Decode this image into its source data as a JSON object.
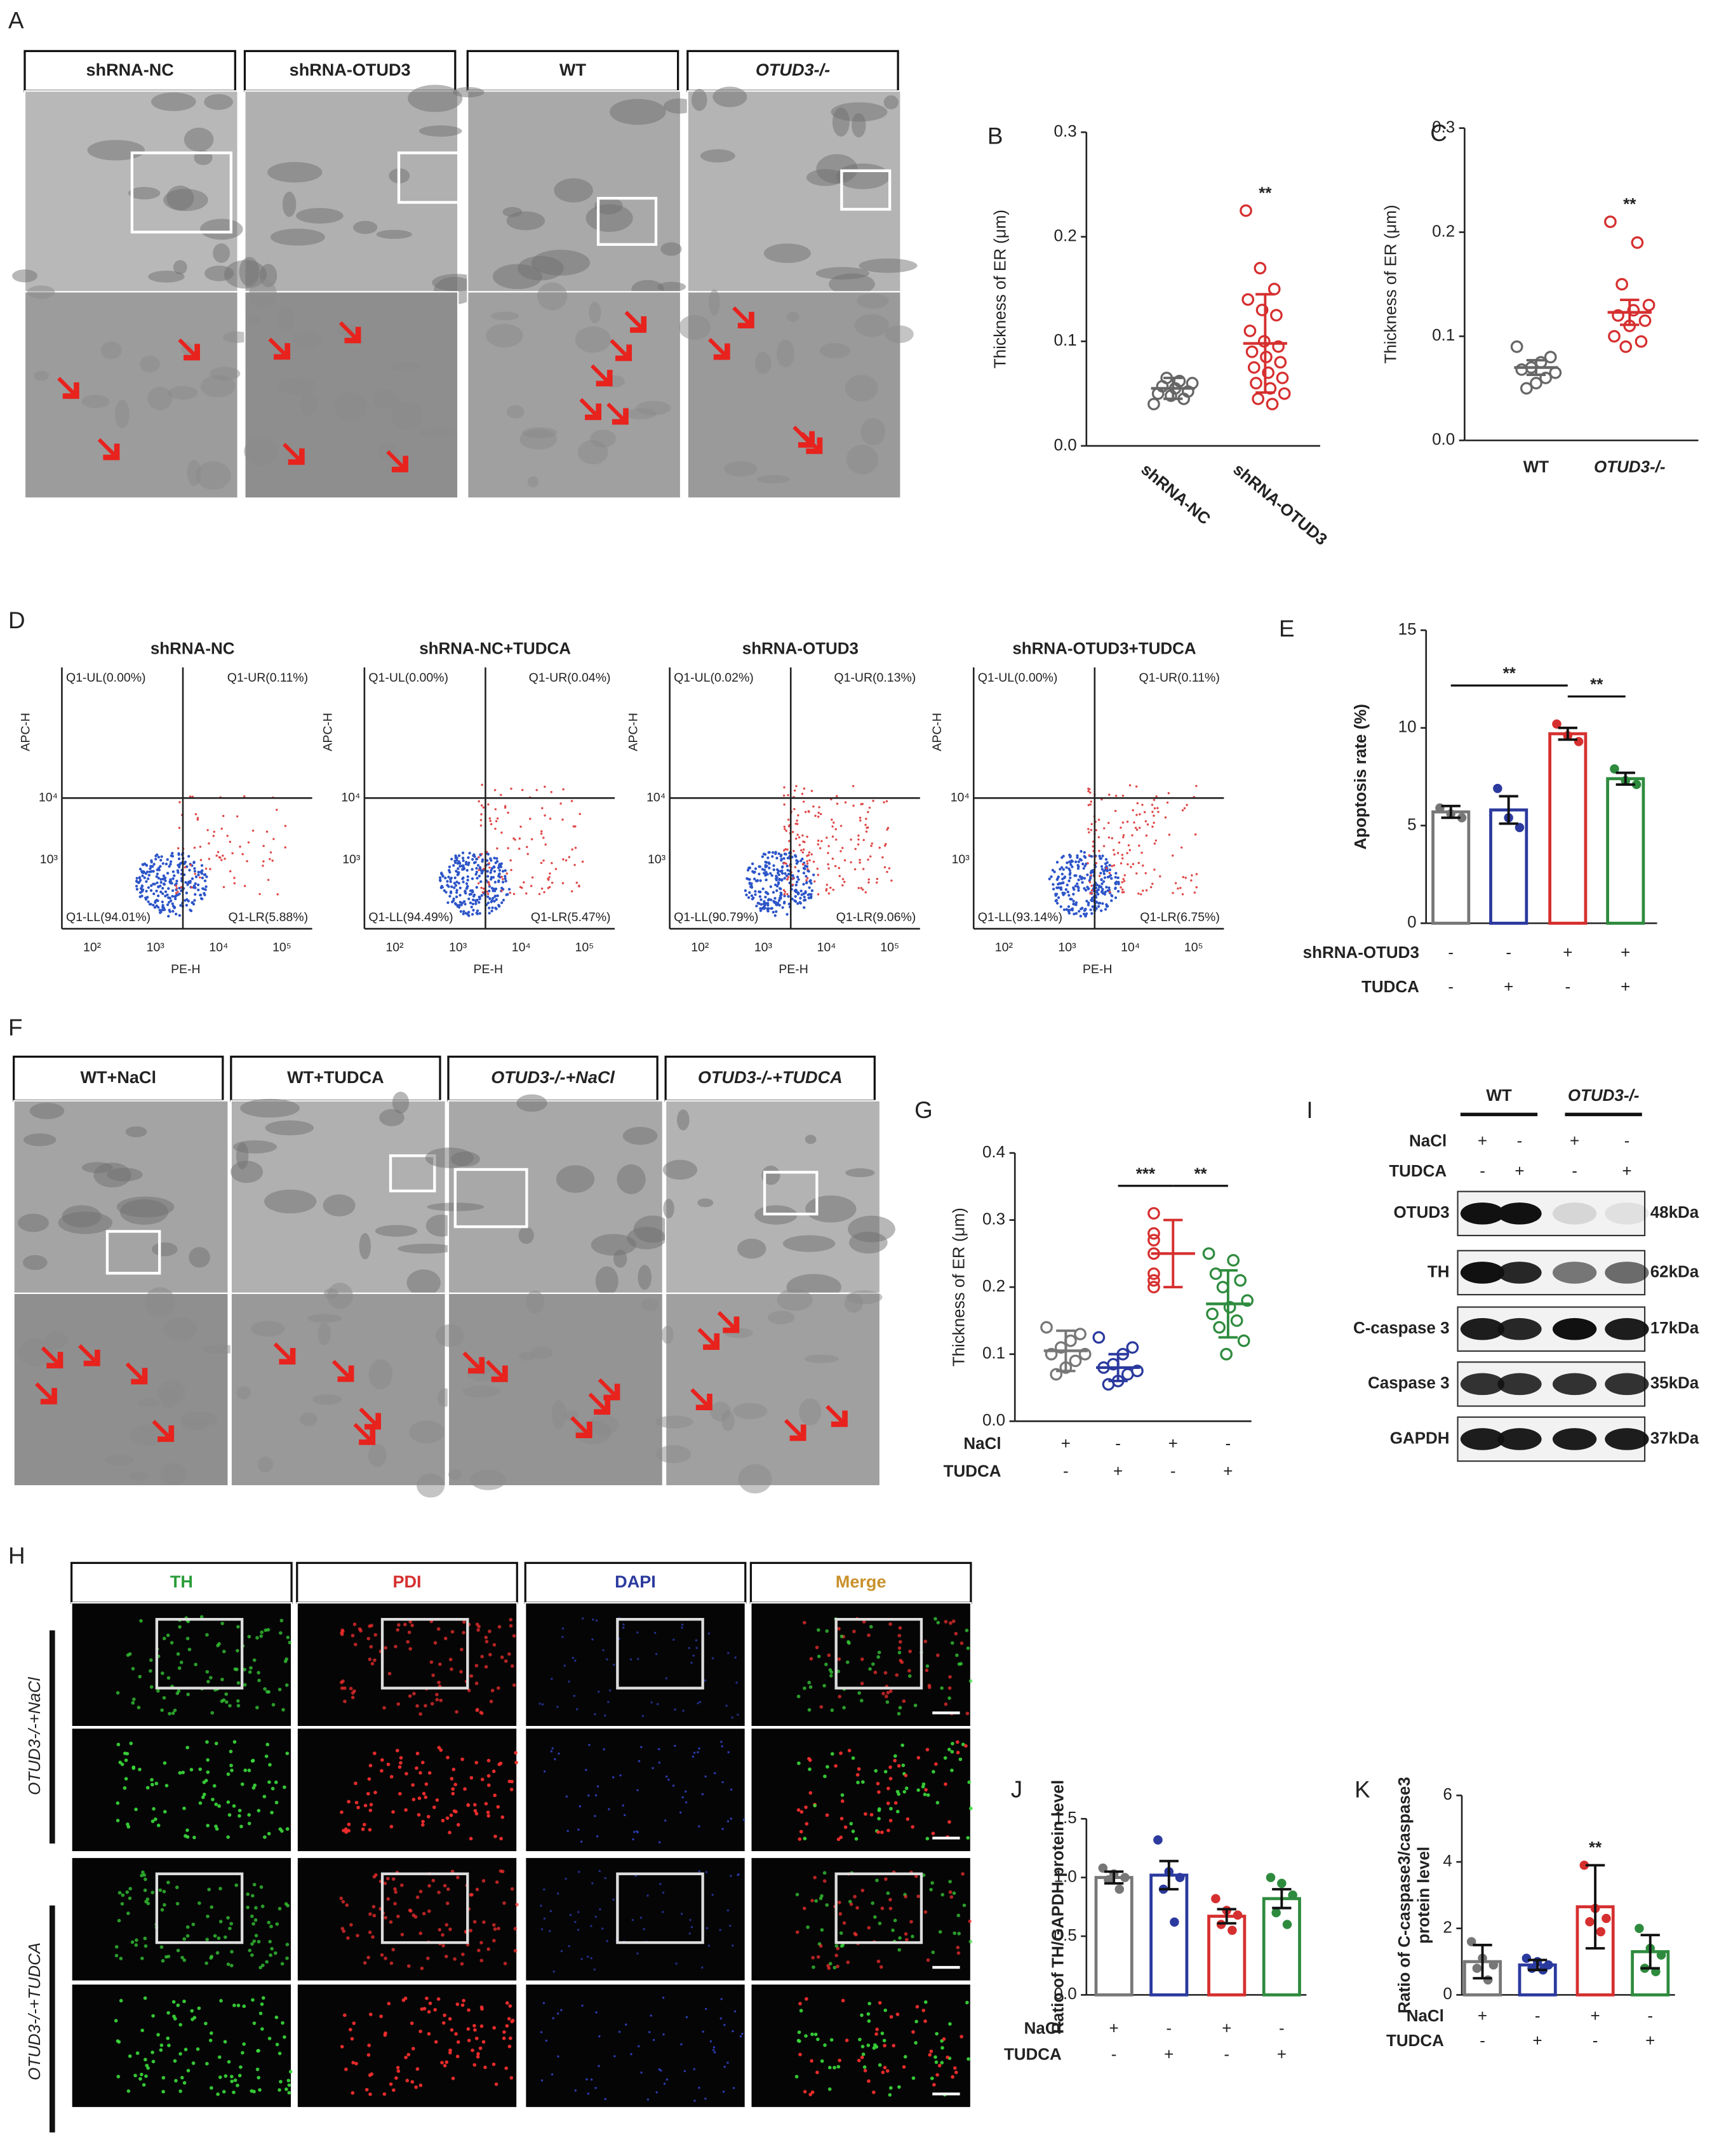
{
  "panel_letters": [
    "A",
    "B",
    "C",
    "D",
    "E",
    "F",
    "G",
    "H",
    "I",
    "J",
    "K"
  ],
  "panel_a": {
    "headers": [
      "shRNA-NC",
      "shRNA-OTUD3",
      "WT",
      "OTUD3-/-"
    ]
  },
  "panel_d": {
    "plots": [
      {
        "title": "shRNA-NC",
        "quadrants": [
          "Q1-UL(0.00%)",
          "Q1-UR(0.11%)",
          "Q1-LL(94.01%)",
          "Q1-LR(5.88%)"
        ]
      },
      {
        "title": "shRNA-NC+TUDCA",
        "quadrants": [
          "Q1-UL(0.00%)",
          "Q1-UR(0.04%)",
          "Q1-LL(94.49%)",
          "Q1-LR(5.47%)"
        ]
      },
      {
        "title": "shRNA-OTUD3",
        "quadrants": [
          "Q1-UL(0.02%)",
          "Q1-UR(0.13%)",
          "Q1-LL(90.79%)",
          "Q1-LR(9.06%)"
        ]
      },
      {
        "title": "shRNA-OTUD3+TUDCA",
        "quadrants": [
          "Q1-UL(0.00%)",
          "Q1-UR(0.11%)",
          "Q1-LL(93.14%)",
          "Q1-LR(6.75%)"
        ]
      }
    ],
    "x_label": "PE-H",
    "y_label": "APC-H",
    "x_ticks": [
      "10²",
      "10³",
      "10⁴",
      "10⁵"
    ],
    "y_ticks": [
      "10³",
      "10⁴"
    ]
  },
  "panel_f": {
    "headers": [
      "WT+NaCl",
      "WT+TUDCA",
      "OTUD3-/-+NaCl",
      "OTUD3-/-+TUDCA"
    ]
  },
  "panel_h": {
    "headers": [
      "TH",
      "PDI",
      "DAPI",
      "Merge"
    ],
    "rows": [
      "OTUD3-/-+NaCl",
      "OTUD3-/-+TUDCA"
    ]
  },
  "panel_i": {
    "groups": [
      "WT",
      "OTUD3-/-"
    ],
    "conditions": [
      {
        "name": "NaCl",
        "signs": [
          "+",
          "-",
          "+",
          "-"
        ]
      },
      {
        "name": "TUDCA",
        "signs": [
          "-",
          "+",
          "-",
          "+"
        ]
      }
    ],
    "bands": [
      {
        "name": "OTUD3",
        "size": "48kDa"
      },
      {
        "name": "TH",
        "size": "62kDa"
      },
      {
        "name": "C-caspase 3",
        "size": "17kDa"
      },
      {
        "name": "Caspase 3",
        "size": "35kDa"
      },
      {
        "name": "GAPDH",
        "size": "37kDa"
      }
    ]
  },
  "chart_data": [
    {
      "type": "dot",
      "ylabel": "Thickness of ER (μm)",
      "categories": [
        "shRNA-NC",
        "shRNA-OTUD3"
      ],
      "xtick_rotation": 40,
      "colors": [
        "#666666",
        "#d62f2f"
      ],
      "ylim": [
        0,
        0.3
      ],
      "yticks": [
        {
          "value": 0,
          "label": "0.0"
        },
        0.1,
        0.2,
        0.3
      ],
      "points": [
        [
          0.04,
          0.045,
          0.048,
          0.05,
          0.052,
          0.055,
          0.057,
          0.06,
          0.062,
          0.065
        ],
        [
          0.225,
          0.17,
          0.15,
          0.14,
          0.13,
          0.125,
          0.11,
          0.1,
          0.095,
          0.09,
          0.085,
          0.08,
          0.075,
          0.07,
          0.065,
          0.06,
          0.055,
          0.05,
          0.045,
          0.04
        ]
      ],
      "means": [
        0.055,
        0.098
      ],
      "errors": [
        0.01,
        0.047
      ],
      "annotations": [
        {
          "text": "**",
          "group": 1
        }
      ]
    },
    {
      "type": "dot",
      "ylabel": "Thickness of ER (μm)",
      "categories": [
        "WT",
        "OTUD3-/-"
      ],
      "colors": [
        "#666666",
        "#d62f2f"
      ],
      "ylim": [
        0,
        0.3
      ],
      "yticks": [
        {
          "value": 0,
          "label": "0.0"
        },
        0.1,
        0.2,
        0.3
      ],
      "points": [
        [
          0.09,
          0.08,
          0.075,
          0.07,
          0.068,
          0.065,
          0.06,
          0.055,
          0.05
        ],
        [
          0.21,
          0.19,
          0.15,
          0.13,
          0.125,
          0.12,
          0.115,
          0.11,
          0.1,
          0.095,
          0.09
        ]
      ],
      "means": [
        0.07,
        0.123
      ],
      "errors": [
        0.007,
        0.012
      ],
      "annotations": [
        {
          "text": "**",
          "group": 1
        }
      ]
    },
    {
      "type": "bar",
      "ylabel": "Apoptosis rate (%)",
      "colors": [
        "#777777",
        "#2b3a9e",
        "#d62f2f",
        "#2e8b3e"
      ],
      "ylim": [
        0,
        15
      ],
      "yticks": [
        0,
        5,
        10,
        15
      ],
      "points": [
        [
          5.9,
          5.6,
          5.4
        ],
        [
          6.9,
          5.4,
          4.9
        ],
        [
          10.2,
          9.6,
          9.3
        ],
        [
          7.9,
          7.3,
          7.1
        ]
      ],
      "means": [
        5.7,
        5.8,
        9.7,
        7.4
      ],
      "errors": [
        0.3,
        0.7,
        0.3,
        0.3
      ],
      "conditions": [
        {
          "name": "shRNA-OTUD3",
          "signs": [
            "-",
            "-",
            "+",
            "+"
          ]
        },
        {
          "name": "TUDCA",
          "signs": [
            "-",
            "+",
            "-",
            "+"
          ]
        }
      ],
      "annotations": [
        {
          "text": "**",
          "from": 0,
          "to": 2
        },
        {
          "text": "**",
          "from": 2,
          "to": 3
        }
      ]
    },
    {
      "type": "dot",
      "ylabel": "Thickness of ER (μm)",
      "colors": [
        "#777777",
        "#2b3a9e",
        "#d62f2f",
        "#2e8b3e"
      ],
      "ylim": [
        0,
        0.4
      ],
      "yticks": [
        {
          "value": 0,
          "label": "0.0"
        },
        0.1,
        0.2,
        0.3,
        0.4
      ],
      "points": [
        [
          0.14,
          0.13,
          0.12,
          0.11,
          0.1,
          0.1,
          0.09,
          0.08,
          0.07
        ],
        [
          0.125,
          0.11,
          0.1,
          0.085,
          0.08,
          0.075,
          0.07,
          0.06,
          0.055
        ],
        [
          0.31,
          0.28,
          0.27,
          0.25,
          0.22,
          0.21,
          0.2
        ],
        [
          0.25,
          0.24,
          0.22,
          0.21,
          0.2,
          0.18,
          0.17,
          0.16,
          0.15,
          0.14,
          0.12,
          0.1
        ]
      ],
      "means": [
        0.105,
        0.08,
        0.25,
        0.175
      ],
      "errors": [
        0.03,
        0.02,
        0.05,
        0.05
      ],
      "conditions": [
        {
          "name": "NaCl",
          "signs": [
            "+",
            "-",
            "+",
            "-"
          ]
        },
        {
          "name": "TUDCA",
          "signs": [
            "-",
            "+",
            "-",
            "+"
          ]
        }
      ],
      "annotations": [
        {
          "text": "***",
          "from": 1,
          "to": 2
        },
        {
          "text": "**",
          "from": 2,
          "to": 3
        }
      ]
    },
    {
      "type": "bar",
      "ylabel": "Ratio of TH/GAPDH protein level",
      "colors": [
        "#777777",
        "#2b3a9e",
        "#d62f2f",
        "#2e8b3e"
      ],
      "ylim": [
        0,
        1.5
      ],
      "yticks": [
        {
          "value": 0,
          "label": "0.0"
        },
        0.5,
        {
          "value": 1,
          "label": "1.0"
        },
        1.5
      ],
      "points": [
        [
          1.08,
          1.03,
          1.0,
          0.98,
          0.9
        ],
        [
          1.32,
          1.05,
          1.0,
          0.9,
          0.62
        ],
        [
          0.82,
          0.72,
          0.68,
          0.6,
          0.55
        ],
        [
          1.0,
          0.95,
          0.85,
          0.7,
          0.6
        ]
      ],
      "means": [
        1.0,
        1.02,
        0.67,
        0.82
      ],
      "errors": [
        0.05,
        0.12,
        0.06,
        0.08
      ],
      "conditions": [
        {
          "name": "NaCl",
          "signs": [
            "+",
            "-",
            "+",
            "-"
          ]
        },
        {
          "name": "TUDCA",
          "signs": [
            "-",
            "+",
            "-",
            "+"
          ]
        }
      ],
      "annotations": []
    },
    {
      "type": "bar",
      "ylabel": [
        "Ratio of C-caspase3/caspase3",
        "protein level"
      ],
      "colors": [
        "#777777",
        "#2b3a9e",
        "#d62f2f",
        "#2e8b3e"
      ],
      "ylim": [
        0,
        6
      ],
      "yticks": [
        0,
        2,
        4,
        6
      ],
      "points": [
        [
          1.6,
          1.1,
          0.9,
          0.8,
          0.45
        ],
        [
          1.1,
          1.0,
          0.9,
          0.8,
          0.75
        ],
        [
          3.9,
          2.6,
          2.3,
          2.2,
          1.9
        ],
        [
          2.0,
          1.4,
          1.2,
          0.8,
          0.7
        ]
      ],
      "means": [
        1.0,
        0.9,
        2.65,
        1.3
      ],
      "errors": [
        0.5,
        0.15,
        1.25,
        0.5
      ],
      "conditions": [
        {
          "name": "NaCl",
          "signs": [
            "+",
            "-",
            "+",
            "-"
          ]
        },
        {
          "name": "TUDCA",
          "signs": [
            "-",
            "+",
            "-",
            "+"
          ]
        }
      ],
      "annotations": [
        {
          "text": "**",
          "group": 2
        }
      ]
    }
  ]
}
